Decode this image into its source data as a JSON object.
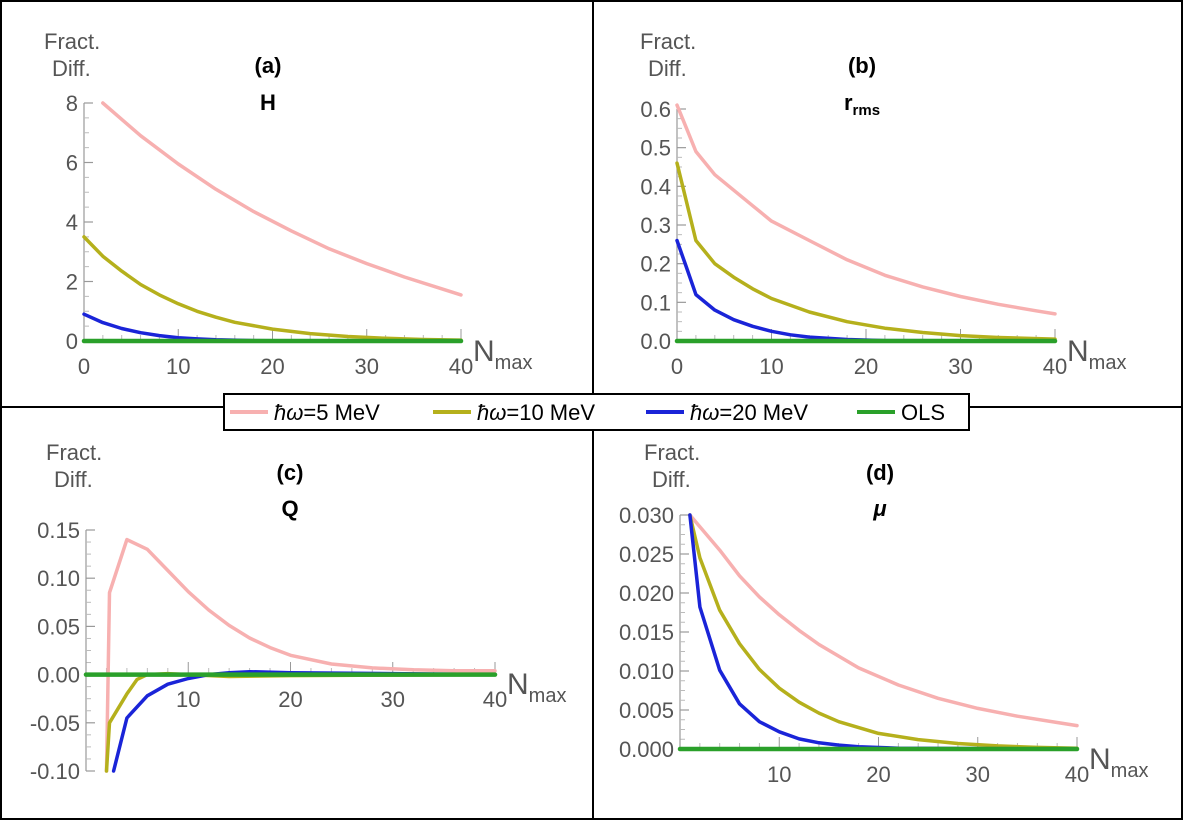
{
  "legend": {
    "entries": [
      {
        "label_prefix": "ħω",
        "label_value": "=5 MeV",
        "color": "#f7b0b0"
      },
      {
        "label_prefix": "ħω",
        "label_value": "=10 MeV",
        "color": "#b5b01c"
      },
      {
        "label_prefix": "ħω",
        "label_value": "=20 MeV",
        "color": "#1a24d8"
      },
      {
        "label_prefix": "",
        "label_value": "OLS",
        "color": "#2aa02a"
      }
    ]
  },
  "chart_data": [
    {
      "type": "line",
      "panel_label": "(a)",
      "observable": "H",
      "observable_sub": "",
      "ylabel_line1": "Fract.",
      "ylabel_line2": "Diff.",
      "xlabel_main": "N",
      "xlabel_sub": "max",
      "xlim": [
        0,
        40
      ],
      "ylim": [
        0,
        8
      ],
      "xticks": [
        0,
        10,
        20,
        30,
        40
      ],
      "xtick_labels": [
        "0",
        "10",
        "20",
        "30",
        "40"
      ],
      "yticks": [
        0,
        2,
        4,
        6,
        8
      ],
      "ytick_labels": [
        "0",
        "2",
        "4",
        "6",
        "8"
      ],
      "series": [
        {
          "name": "ħω=5 MeV",
          "color": "#f7b0b0",
          "x": [
            2,
            6,
            10,
            14,
            18,
            22,
            26,
            30,
            34,
            38,
            40
          ],
          "y": [
            8.0,
            6.9,
            5.95,
            5.1,
            4.35,
            3.7,
            3.1,
            2.6,
            2.15,
            1.75,
            1.55
          ]
        },
        {
          "name": "ħω=10 MeV",
          "color": "#b5b01c",
          "x": [
            0,
            2,
            4,
            6,
            8,
            10,
            12,
            14,
            16,
            20,
            24,
            28,
            32,
            36,
            40
          ],
          "y": [
            3.5,
            2.85,
            2.35,
            1.9,
            1.55,
            1.25,
            1.0,
            0.8,
            0.63,
            0.4,
            0.25,
            0.15,
            0.09,
            0.05,
            0.03
          ]
        },
        {
          "name": "ħω=20 MeV",
          "color": "#1a24d8",
          "x": [
            0,
            2,
            4,
            6,
            8,
            10,
            12,
            14,
            18,
            22,
            40
          ],
          "y": [
            0.9,
            0.62,
            0.42,
            0.28,
            0.18,
            0.11,
            0.07,
            0.04,
            0.015,
            0.005,
            0.0
          ]
        },
        {
          "name": "OLS",
          "color": "#2aa02a",
          "x": [
            0,
            40
          ],
          "y": [
            0,
            0
          ]
        }
      ]
    },
    {
      "type": "line",
      "panel_label": "(b)",
      "observable": "r",
      "observable_sub": "rms",
      "ylabel_line1": "Fract.",
      "ylabel_line2": "Diff.",
      "xlabel_main": "N",
      "xlabel_sub": "max",
      "xlim": [
        0,
        40
      ],
      "ylim": [
        0,
        0.6
      ],
      "xticks": [
        0,
        10,
        20,
        30,
        40
      ],
      "xtick_labels": [
        "0",
        "10",
        "20",
        "30",
        "40"
      ],
      "yticks": [
        0,
        0.1,
        0.2,
        0.3,
        0.4,
        0.5,
        0.6
      ],
      "ytick_labels": [
        "0.0",
        "0.1",
        "0.2",
        "0.3",
        "0.4",
        "0.5",
        "0.6"
      ],
      "series": [
        {
          "name": "ħω=5 MeV",
          "color": "#f7b0b0",
          "x": [
            0,
            1,
            2,
            4,
            6,
            8,
            10,
            14,
            18,
            22,
            26,
            30,
            34,
            38,
            40
          ],
          "y": [
            0.61,
            0.55,
            0.49,
            0.43,
            0.39,
            0.35,
            0.31,
            0.26,
            0.21,
            0.17,
            0.14,
            0.115,
            0.095,
            0.078,
            0.07
          ]
        },
        {
          "name": "ħω=10 MeV",
          "color": "#b5b01c",
          "x": [
            0,
            1,
            2,
            4,
            6,
            8,
            10,
            14,
            18,
            22,
            26,
            30,
            34,
            40
          ],
          "y": [
            0.46,
            0.36,
            0.26,
            0.2,
            0.165,
            0.135,
            0.11,
            0.075,
            0.05,
            0.033,
            0.022,
            0.014,
            0.009,
            0.005
          ]
        },
        {
          "name": "ħω=20 MeV",
          "color": "#1a24d8",
          "x": [
            0,
            1,
            2,
            4,
            6,
            8,
            10,
            12,
            14,
            18,
            22,
            40
          ],
          "y": [
            0.26,
            0.19,
            0.12,
            0.08,
            0.055,
            0.038,
            0.025,
            0.016,
            0.01,
            0.004,
            0.001,
            0.0
          ]
        },
        {
          "name": "OLS",
          "color": "#2aa02a",
          "x": [
            0,
            40
          ],
          "y": [
            0,
            0
          ]
        }
      ]
    },
    {
      "type": "line",
      "panel_label": "(c)",
      "observable": "Q",
      "observable_sub": "",
      "ylabel_line1": "Fract.",
      "ylabel_line2": "Diff.",
      "xlabel_main": "N",
      "xlabel_sub": "max",
      "xlim": [
        0,
        40
      ],
      "ylim": [
        -0.1,
        0.15
      ],
      "xticks": [
        10,
        20,
        30,
        40
      ],
      "xtick_labels": [
        "10",
        "20",
        "30",
        "40"
      ],
      "yticks": [
        -0.1,
        -0.05,
        0,
        0.05,
        0.1,
        0.15
      ],
      "ytick_labels": [
        "-0.10",
        "-0.05",
        "0.00",
        "0.05",
        "0.10",
        "0.15"
      ],
      "series": [
        {
          "name": "ħω=5 MeV",
          "color": "#f7b0b0",
          "x": [
            2,
            2.3,
            4,
            6,
            8,
            10,
            12,
            14,
            16,
            18,
            20,
            24,
            28,
            32,
            36,
            40
          ],
          "y": [
            -0.1,
            0.085,
            0.14,
            0.13,
            0.108,
            0.086,
            0.067,
            0.051,
            0.038,
            0.028,
            0.02,
            0.011,
            0.007,
            0.005,
            0.004,
            0.004
          ]
        },
        {
          "name": "ħω=10 MeV",
          "color": "#b5b01c",
          "x": [
            2,
            2.3,
            4,
            5,
            6,
            8,
            10,
            14,
            20,
            40
          ],
          "y": [
            -0.1,
            -0.05,
            -0.02,
            -0.005,
            0.0,
            0.001,
            0.0,
            -0.002,
            -0.001,
            0.0
          ]
        },
        {
          "name": "ħω=20 MeV",
          "color": "#1a24d8",
          "x": [
            2.7,
            4,
            6,
            8,
            10,
            12,
            14,
            16,
            20,
            30,
            40
          ],
          "y": [
            -0.1,
            -0.045,
            -0.022,
            -0.01,
            -0.004,
            0.0,
            0.002,
            0.003,
            0.002,
            0.001,
            0.0
          ]
        },
        {
          "name": "OLS",
          "color": "#2aa02a",
          "x": [
            0,
            40
          ],
          "y": [
            0,
            0
          ]
        }
      ]
    },
    {
      "type": "line",
      "panel_label": "(d)",
      "observable": "μ",
      "observable_sub": "",
      "ylabel_line1": "Fract.",
      "ylabel_line2": "Diff.",
      "xlabel_main": "N",
      "xlabel_sub": "max",
      "xlim": [
        0,
        40
      ],
      "ylim": [
        0,
        0.03
      ],
      "xticks": [
        10,
        20,
        30,
        40
      ],
      "xtick_labels": [
        "10",
        "20",
        "30",
        "40"
      ],
      "yticks": [
        0,
        0.005,
        0.01,
        0.015,
        0.02,
        0.025,
        0.03
      ],
      "ytick_labels": [
        "0.000",
        "0.005",
        "0.010",
        "0.015",
        "0.020",
        "0.025",
        "0.030"
      ],
      "series": [
        {
          "name": "ħω=5 MeV",
          "color": "#f7b0b0",
          "x": [
            1,
            4,
            6,
            8,
            10,
            12,
            14,
            18,
            22,
            26,
            30,
            34,
            38,
            40
          ],
          "y": [
            0.03,
            0.0255,
            0.0222,
            0.0195,
            0.0172,
            0.0152,
            0.0134,
            0.0104,
            0.0082,
            0.0065,
            0.0052,
            0.0042,
            0.0034,
            0.003
          ]
        },
        {
          "name": "ħω=10 MeV",
          "color": "#b5b01c",
          "x": [
            1,
            2,
            4,
            6,
            8,
            10,
            12,
            14,
            16,
            20,
            24,
            28,
            32,
            36,
            40
          ],
          "y": [
            0.03,
            0.0245,
            0.0178,
            0.0135,
            0.0102,
            0.0078,
            0.006,
            0.0046,
            0.0035,
            0.002,
            0.0012,
            0.0007,
            0.0004,
            0.0002,
            0.0001
          ]
        },
        {
          "name": "ħω=20 MeV",
          "color": "#1a24d8",
          "x": [
            1,
            2,
            4,
            6,
            8,
            10,
            12,
            14,
            16,
            18,
            22,
            40
          ],
          "y": [
            0.03,
            0.0182,
            0.0101,
            0.0058,
            0.0035,
            0.0022,
            0.0013,
            0.0008,
            0.0005,
            0.0003,
            0.0001,
            0.0
          ]
        },
        {
          "name": "OLS",
          "color": "#2aa02a",
          "x": [
            0,
            40
          ],
          "y": [
            0,
            0
          ]
        }
      ]
    }
  ]
}
